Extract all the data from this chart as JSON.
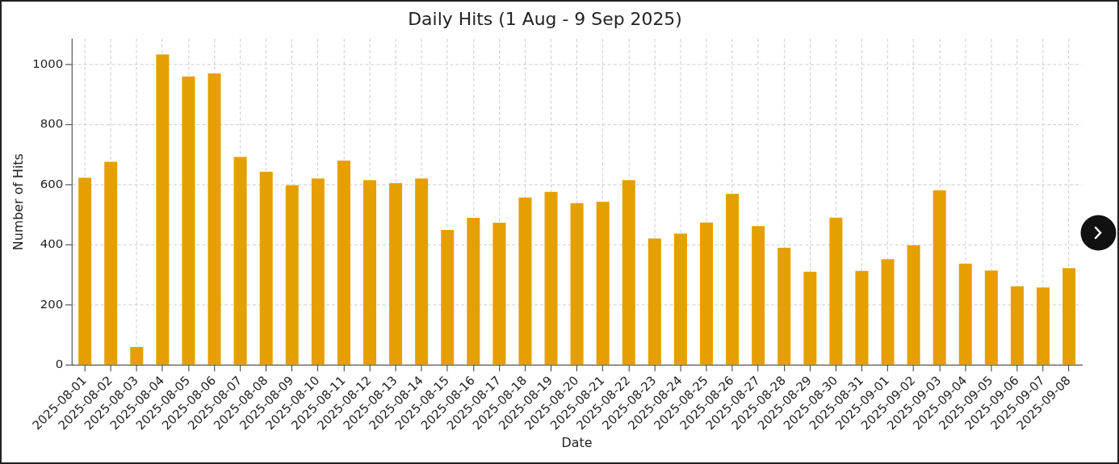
{
  "chart_data": {
    "type": "bar",
    "title": "Daily Hits (1 Aug - 9 Sep 2025)",
    "xlabel": "Date",
    "ylabel": "Number of Hits",
    "categories": [
      "2025-08-01",
      "2025-08-02",
      "2025-08-03",
      "2025-08-04",
      "2025-08-05",
      "2025-08-06",
      "2025-08-07",
      "2025-08-08",
      "2025-08-09",
      "2025-08-10",
      "2025-08-11",
      "2025-08-12",
      "2025-08-13",
      "2025-08-14",
      "2025-08-15",
      "2025-08-16",
      "2025-08-17",
      "2025-08-18",
      "2025-08-19",
      "2025-08-20",
      "2025-08-21",
      "2025-08-22",
      "2025-08-23",
      "2025-08-24",
      "2025-08-25",
      "2025-08-26",
      "2025-08-27",
      "2025-08-28",
      "2025-08-29",
      "2025-08-30",
      "2025-08-31",
      "2025-09-01",
      "2025-09-02",
      "2025-09-03",
      "2025-09-04",
      "2025-09-05",
      "2025-09-06",
      "2025-09-07",
      "2025-09-08"
    ],
    "values": [
      623,
      676,
      60,
      1033,
      960,
      970,
      692,
      643,
      598,
      620,
      680,
      615,
      605,
      620,
      449,
      489,
      473,
      557,
      576,
      538,
      543,
      615,
      421,
      437,
      474,
      569,
      462,
      390,
      310,
      490,
      313,
      352,
      398,
      581,
      337,
      314,
      262,
      258,
      322
    ],
    "color": "#e69f00",
    "ylim": [
      0,
      1085
    ],
    "yticks": [
      0,
      200,
      400,
      600,
      800,
      1000
    ],
    "grid": true
  }
}
